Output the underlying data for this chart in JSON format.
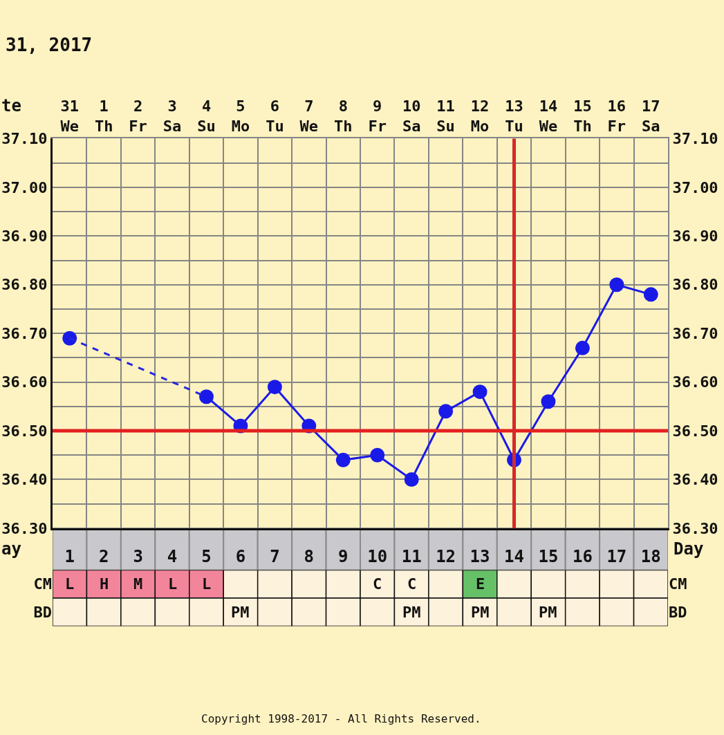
{
  "chart_data": [
    {
      "type": "line",
      "title": "31, 2017",
      "xlabel": "te",
      "x2label": "Day",
      "grid": true,
      "categories": [
        "31\nWe",
        "1\nTh",
        "2\nFr",
        "3\nSa",
        "4\nSu",
        "5\nMo",
        "6\nTu",
        "7\nWe",
        "8\nTh",
        "9\nFr",
        "10\nSa",
        "11\nSu",
        "12\nMo",
        "13\nTu",
        "14\nWe",
        "15\nTh",
        "16\nFr",
        "17\nSa"
      ],
      "x2lim": [
        0.5,
        18.5
      ],
      "x2ticks": [
        1,
        2,
        3,
        4,
        5,
        6,
        7,
        8,
        9,
        10,
        11,
        12,
        13,
        14,
        15,
        16,
        17,
        18
      ],
      "ylim": [
        36.3,
        37.1
      ],
      "yticks": [
        {
          "value": 37.1,
          "label": "37.10"
        },
        {
          "value": 37.05,
          "label": null
        },
        {
          "value": 37.0,
          "label": "37.00"
        },
        {
          "value": 36.95,
          "label": null
        },
        {
          "value": 36.9,
          "label": "36.90"
        },
        {
          "value": 36.85,
          "label": null
        },
        {
          "value": 36.8,
          "label": "36.80"
        },
        {
          "value": 36.75,
          "label": null
        },
        {
          "value": 36.7,
          "label": "36.70"
        },
        {
          "value": 36.65,
          "label": null
        },
        {
          "value": 36.6,
          "label": "36.60"
        },
        {
          "value": 36.55,
          "label": null
        },
        {
          "value": 36.5,
          "label": "36.50"
        },
        {
          "value": 36.45,
          "label": null
        },
        {
          "value": 36.4,
          "label": "36.40"
        },
        {
          "value": 36.35,
          "label": null
        },
        {
          "value": 36.3,
          "label": "36.30"
        }
      ],
      "y2lim": [
        36.3,
        37.1
      ],
      "y2ticks": [
        {
          "value": 37.1,
          "label": "37.10"
        },
        {
          "value": 37.0,
          "label": "37.00"
        },
        {
          "value": 36.9,
          "label": "36.90"
        },
        {
          "value": 36.8,
          "label": "36.80"
        },
        {
          "value": 36.7,
          "label": "36.70"
        },
        {
          "value": 36.6,
          "label": "36.60"
        },
        {
          "value": 36.5,
          "label": "36.50"
        },
        {
          "value": 36.4,
          "label": "36.40"
        },
        {
          "value": 36.3,
          "label": "36.30"
        }
      ],
      "series": [
        {
          "color": "#1a1ae8",
          "marker": "circle",
          "line_style": "solid",
          "values": [
            36.69,
            null,
            null,
            null,
            36.57,
            36.51,
            36.59,
            36.51,
            36.44,
            36.45,
            36.4,
            36.54,
            36.58,
            36.44,
            36.56,
            36.67,
            36.8,
            36.78
          ]
        },
        {
          "color": "#2626e0",
          "marker": "none",
          "line_style": "dashed",
          "x": [
            "31\nWe",
            "4\nSu"
          ],
          "values": [
            36.69,
            36.57
          ]
        }
      ],
      "ref_lines": [
        {
          "axis": "y",
          "value": 36.5,
          "color": "#e42020"
        },
        {
          "axis": "x",
          "value": "13\nTu",
          "color": "#d42a2a"
        }
      ],
      "annotations": [
        "ay",
        "Copyright 1998-2017 - All Rights Reserved."
      ]
    },
    {
      "type": "heatmap",
      "tick_labels": "y",
      "categories": [
        null,
        null,
        null,
        null,
        null,
        null,
        null,
        null,
        null,
        null,
        null,
        null,
        null,
        null,
        null,
        null,
        null,
        null
      ],
      "y_categories": [
        "CM",
        "BD"
      ],
      "y2_categories": [
        "CM",
        "BD"
      ],
      "cells": [
        [
          null,
          null,
          null,
          null,
          null,
          null,
          null,
          null,
          null,
          null,
          null,
          null,
          null,
          null,
          null,
          null,
          null,
          null
        ],
        [
          null,
          null,
          null,
          null,
          null,
          null,
          null,
          null,
          null,
          null,
          null,
          null,
          null,
          null,
          null,
          null,
          null,
          null
        ]
      ],
      "cell_labels": [
        [
          "L",
          "H",
          "M",
          "L",
          "L",
          null,
          null,
          null,
          null,
          "C",
          "C",
          null,
          "E",
          null,
          null,
          null,
          null,
          null
        ],
        [
          null,
          null,
          null,
          null,
          null,
          "PM",
          null,
          null,
          null,
          null,
          "PM",
          null,
          "PM",
          null,
          "PM",
          null,
          null,
          null
        ]
      ],
      "colors": [
        [
          "#f3859b",
          "#f3859b",
          "#f3859b",
          "#f3859b",
          "#f3859b",
          "#fdf2dc",
          "#fdf2dc",
          "#fdf2dc",
          "#fdf2dc",
          "#fdf2dc",
          "#fdf2dc",
          "#fdf2dc",
          "#66c068",
          "#fdf2dc",
          "#fdf2dc",
          "#fdf2dc",
          "#fdf2dc",
          "#fdf2dc"
        ],
        [
          "#fdf2dc",
          "#fdf2dc",
          "#fdf2dc",
          "#fdf2dc",
          "#fdf2dc",
          "#fdf2dc",
          "#fdf2dc",
          "#fdf2dc",
          "#fdf2dc",
          "#fdf2dc",
          "#fdf2dc",
          "#fdf2dc",
          "#fdf2dc",
          "#fdf2dc",
          "#fdf2dc",
          "#fdf2dc",
          "#fdf2dc",
          "#fdf2dc"
        ]
      ]
    }
  ]
}
